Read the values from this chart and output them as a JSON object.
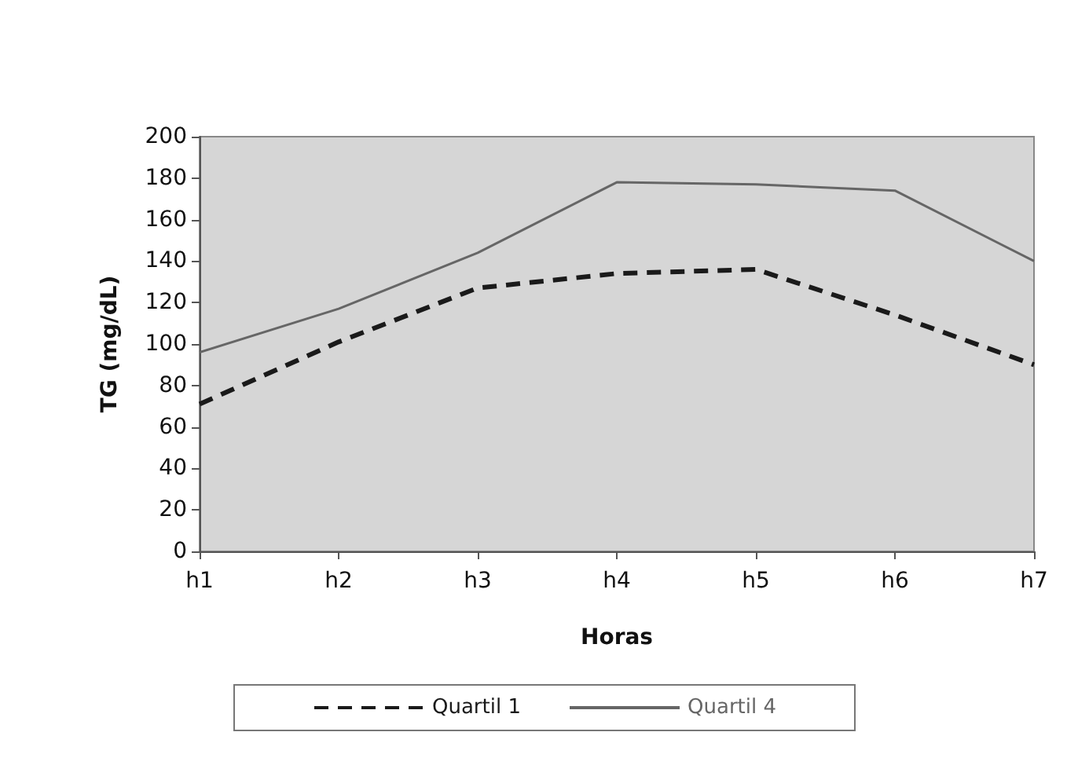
{
  "chart_data": {
    "type": "line",
    "xlabel": "Horas",
    "ylabel": "TG (mg/dL)",
    "categories": [
      "h1",
      "h2",
      "h3",
      "h4",
      "h5",
      "h6",
      "h7"
    ],
    "series": [
      {
        "name": "Quartil 1",
        "color": "#1a1a1a",
        "line_style": "dashed",
        "values": [
          71,
          101,
          127,
          134,
          136,
          114,
          90
        ]
      },
      {
        "name": "Quartil 4",
        "color": "#666666",
        "line_style": "solid",
        "values": [
          96,
          117,
          144,
          178,
          177,
          174,
          140
        ]
      }
    ],
    "ylim": [
      0,
      200
    ],
    "yticks": [
      0,
      20,
      40,
      60,
      80,
      100,
      120,
      140,
      160,
      180,
      200
    ],
    "grid": false,
    "legend": "bottom",
    "marker": "none"
  }
}
